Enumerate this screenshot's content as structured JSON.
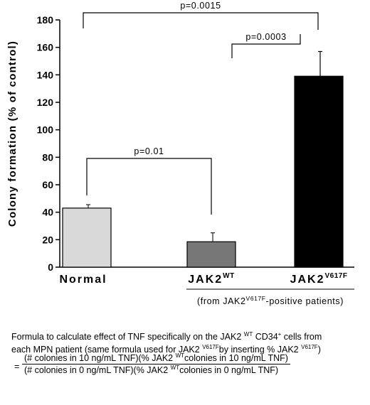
{
  "chart_data": {
    "type": "bar",
    "categories": [
      "Normal",
      "JAK2",
      "JAK2"
    ],
    "category_superscripts": [
      "",
      "WT",
      "V617F"
    ],
    "values": [
      43,
      18.5,
      139
    ],
    "error_upper": [
      45.5,
      25,
      157
    ],
    "bar_colors": [
      "#d9d9d9",
      "#777777",
      "#000000"
    ],
    "ylabel": "Colony formation (% of control)",
    "ylim": [
      0,
      180
    ],
    "yticks": [
      "0",
      "20",
      "40",
      "60",
      "80",
      "100",
      "120",
      "140",
      "160",
      "180"
    ],
    "grid": false,
    "group_label": {
      "prefix": "(from JAK2",
      "superscript": "V617F",
      "suffix": "-positive patients)"
    },
    "significance": [
      {
        "label": "p=0.0015",
        "from": 0,
        "to": 2
      },
      {
        "label": "p=0.0003",
        "from": 1,
        "to": 2
      },
      {
        "label": "p=0.01",
        "from": 0,
        "to": 1
      }
    ]
  },
  "formula": {
    "line1_a": "Formula to calculate effect of TNF specifically on the JAK2 ",
    "line1_sup": "WT",
    "line1_b": " CD34",
    "line1_sup2": "+",
    "line1_c": " cells from",
    "line2_a": "each MPN patient (same formula used for JAK2 ",
    "line2_sup": "V617F",
    "line2_b": "by inserting % JAK2 ",
    "line2_sup2": "V617F",
    "line2_c": ")",
    "equals": "=",
    "num_a": "(# colonies in 10 ng/mL TNF)(% JAK2 ",
    "num_sup": "WT",
    "num_b": "colonies in 10 ng/mL TNF)",
    "den_a": "(# colonies in 0 ng/mL TNF)(% JAK2 ",
    "den_sup": "WT",
    "den_b": "colonies in 0 ng/mL TNF)"
  }
}
